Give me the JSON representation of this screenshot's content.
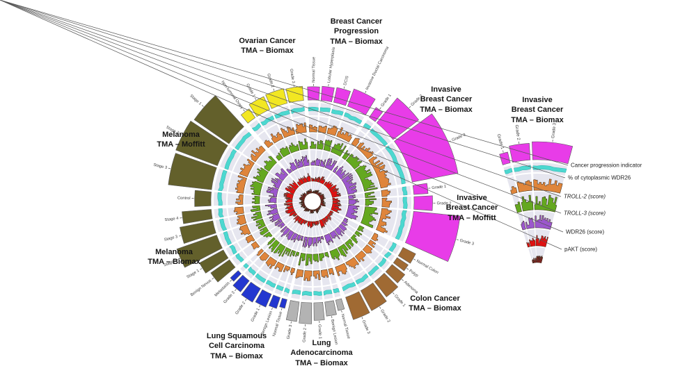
{
  "titles": {
    "breast_progression": "Breast Cancer\nProgression\nTMA – Biomax",
    "ovarian": "Ovarian Cancer\nTMA – Biomax",
    "invasive_breast_biomax": "Invasive\nBreast Cancer\nTMA – Biomax",
    "invasive_breast_moffitt": "Invasive\nBreast Cancer\nTMA – Moffitt",
    "colon": "Colon Cancer\nTMA – Biomax",
    "lung_adeno": "Lung\nAdenocarcinoma\nTMA – Biomax",
    "lung_squamous": "Lung Squamous\nCell Carcinoma\nTMA – Biomax",
    "melanoma_biomax": "Melanoma\nTMA – Biomax",
    "melanoma_moffitt": "Melanoma\nTMA – Moffitt",
    "legend": "Invasive\nBreast Cancer\nTMA – Biomax"
  },
  "legend": {
    "ring_labels": [
      {
        "text": "Cancer progression indicator",
        "italic": false
      },
      {
        "text": "% of cytoplasmic WDR26",
        "italic": false
      },
      {
        "text": "TROLL-2 (score)",
        "italic": true
      },
      {
        "text": "TROLL-3 (score)",
        "italic": true
      },
      {
        "text": "WDR26 (score)",
        "italic": false
      },
      {
        "text": "pAKT (score)",
        "italic": false
      }
    ]
  },
  "chart_data": {
    "type": "circos",
    "colors": {
      "band": "#e6e6ef",
      "breast": "#e83ce8",
      "ovarian": "#f2e722",
      "melanoma": "#63602b",
      "lung_squamous": "#2337d0",
      "lung_adeno": "#b3b3b3",
      "colon": "#a06a33",
      "bar_outline": "#2d2213",
      "cat_outline": "#5a5a5a"
    },
    "indicator": {
      "label": "Cancer progression indicator",
      "color": "#4cd8d0"
    },
    "rings": [
      {
        "id": "wdr26_cyto",
        "label": "% of cytoplasmic WDR26",
        "color": "#df853b"
      },
      {
        "id": "troll2",
        "label": "TROLL-2 (score)",
        "color": "#64a81f"
      },
      {
        "id": "troll3",
        "label": "TROLL-3 (score)",
        "color": "#9c57cd"
      },
      {
        "id": "wdr26",
        "label": "WDR26 (score)",
        "color": "#de1212"
      },
      {
        "id": "pakt",
        "label": "pAKT (score)",
        "color": "#7a2420"
      }
    ],
    "groups": [
      {
        "id": "breast_progression",
        "title": "Breast Cancer Progression TMA – Biomax",
        "color": "#e83ce8",
        "start": -2.5,
        "end": 31.5,
        "sectors": [
          {
            "label": "Normal Tissue",
            "w": 7,
            "ch": 0.18,
            "levels": [
              0.5,
              0.45,
              0.3,
              0.25,
              0.15
            ]
          },
          {
            "label": "Lobular Hyperplasia",
            "w": 7,
            "ch": 0.2,
            "levels": [
              0.55,
              0.55,
              0.45,
              0.3,
              0.2
            ]
          },
          {
            "label": "DCIS",
            "w": 8,
            "ch": 0.22,
            "levels": [
              0.6,
              0.7,
              0.55,
              0.4,
              0.3
            ]
          },
          {
            "label": "Invasive Ductal Carcinoma",
            "w": 13,
            "ch": 0.3,
            "levels": [
              0.65,
              0.8,
              0.7,
              0.5,
              0.4
            ]
          }
        ]
      },
      {
        "id": "invasive_breast_biomax",
        "title": "Invasive Breast Cancer TMA – Biomax",
        "color": "#e83ce8",
        "start": 34,
        "end": 79,
        "sectors": [
          {
            "label": "Grade 1",
            "w": 4,
            "ch": 0.15,
            "levels": [
              0.55,
              0.6,
              0.5,
              0.35,
              0.25
            ]
          },
          {
            "label": "Grade 2",
            "w": 13,
            "ch": 0.62,
            "levels": [
              0.65,
              0.8,
              0.65,
              0.5,
              0.35
            ]
          },
          {
            "label": "Grade 3",
            "w": 25,
            "ch": 0.95,
            "levels": [
              0.7,
              0.85,
              0.75,
              0.6,
              0.45
            ]
          }
        ]
      },
      {
        "id": "invasive_breast_moffitt",
        "title": "Invasive Breast Cancer TMA – Moffitt",
        "color": "#e83ce8",
        "start": 81,
        "end": 114,
        "sectors": [
          {
            "label": "Grade 1",
            "w": 5,
            "ch": 0.2,
            "levels": [
              0.55,
              0.6,
              0.5,
              0.4,
              0.3
            ]
          },
          {
            "label": "Grade 2",
            "w": 7,
            "ch": 0.3,
            "levels": [
              0.6,
              0.75,
              0.65,
              0.5,
              0.35
            ]
          },
          {
            "label": "Grade 3",
            "w": 18,
            "ch": 0.95,
            "levels": [
              0.7,
              0.85,
              0.75,
              0.65,
              0.5
            ]
          }
        ]
      },
      {
        "id": "colon",
        "title": "Colon Cancer TMA – Biomax",
        "color": "#a06a33",
        "start": 117,
        "end": 161,
        "sectors": [
          {
            "label": "Normal Colon",
            "w": 6,
            "ch": 0.2,
            "levels": [
              0.45,
              0.4,
              0.3,
              0.25,
              0.15
            ]
          },
          {
            "label": "Polyp",
            "w": 4,
            "ch": 0.18,
            "levels": [
              0.5,
              0.45,
              0.4,
              0.3,
              0.2
            ]
          },
          {
            "label": "Adenoma",
            "w": 6,
            "ch": 0.25,
            "levels": [
              0.55,
              0.6,
              0.5,
              0.35,
              0.25
            ]
          },
          {
            "label": "Grade 1",
            "w": 8,
            "ch": 0.32,
            "levels": [
              0.6,
              0.7,
              0.6,
              0.45,
              0.3
            ]
          },
          {
            "label": "Grade 2",
            "w": 9,
            "ch": 0.4,
            "levels": [
              0.65,
              0.75,
              0.65,
              0.5,
              0.35
            ]
          },
          {
            "label": "Grade 3",
            "w": 9,
            "ch": 0.42,
            "levels": [
              0.65,
              0.8,
              0.7,
              0.55,
              0.4
            ]
          }
        ]
      },
      {
        "id": "lung_adeno",
        "title": "Lung Adenocarcinoma TMA – Biomax",
        "color": "#b3b3b3",
        "start": 163.5,
        "end": 192.5,
        "sectors": [
          {
            "label": "Normal Tissue",
            "w": 4,
            "ch": 0.12,
            "levels": [
              0.45,
              0.35,
              0.3,
              0.25,
              0.15
            ]
          },
          {
            "label": "Benign Lesion",
            "w": 6,
            "ch": 0.2,
            "levels": [
              0.5,
              0.45,
              0.4,
              0.3,
              0.2
            ]
          },
          {
            "label": "Grade 1",
            "w": 6,
            "ch": 0.28,
            "levels": [
              0.6,
              0.65,
              0.55,
              0.4,
              0.3
            ]
          },
          {
            "label": "Grade 2",
            "w": 7,
            "ch": 0.36,
            "levels": [
              0.65,
              0.75,
              0.65,
              0.5,
              0.35
            ]
          },
          {
            "label": "Grade 3",
            "w": 6,
            "ch": 0.33,
            "levels": [
              0.65,
              0.8,
              0.7,
              0.55,
              0.4
            ]
          }
        ]
      },
      {
        "id": "lung_squamous",
        "title": "Lung Squamous Cell Carcinoma TMA – Biomax",
        "color": "#2337d0",
        "start": 194.5,
        "end": 227,
        "sectors": [
          {
            "label": "Normal Tissue",
            "w": 3.5,
            "ch": 0.08,
            "levels": [
              0.45,
              0.35,
              0.3,
              0.25,
              0.15
            ]
          },
          {
            "label": "Benign Lesion",
            "w": 5,
            "ch": 0.14,
            "levels": [
              0.5,
              0.45,
              0.4,
              0.3,
              0.2
            ]
          },
          {
            "label": "Grade 1",
            "w": 7,
            "ch": 0.2,
            "levels": [
              0.6,
              0.65,
              0.55,
              0.45,
              0.3
            ]
          },
          {
            "label": "Grade 2",
            "w": 8,
            "ch": 0.24,
            "levels": [
              0.65,
              0.75,
              0.65,
              0.5,
              0.35
            ]
          },
          {
            "label": "Grade 3",
            "w": 6,
            "ch": 0.2,
            "levels": [
              0.65,
              0.8,
              0.7,
              0.55,
              0.4
            ]
          },
          {
            "label": "Metastasis",
            "w": 3,
            "ch": 0.12,
            "levels": [
              0.6,
              0.7,
              0.6,
              0.5,
              0.35
            ]
          }
        ]
      },
      {
        "id": "melanoma_biomax",
        "title": "Melanoma TMA – Biomax",
        "color": "#63602b",
        "start": 229.5,
        "end": 265.5,
        "sectors": [
          {
            "label": "Benign Nevus",
            "w": 6,
            "ch": 0.4,
            "levels": [
              0.5,
              0.5,
              0.45,
              0.4,
              0.25
            ]
          },
          {
            "label": "Stage 1",
            "w": 6,
            "ch": 0.5,
            "levels": [
              0.55,
              0.6,
              0.55,
              0.5,
              0.3
            ]
          },
          {
            "label": "Stage 2",
            "w": 9,
            "ch": 0.85,
            "levels": [
              0.6,
              0.7,
              0.65,
              0.6,
              0.4
            ]
          },
          {
            "label": "Stage 3",
            "w": 8,
            "ch": 0.65,
            "levels": [
              0.6,
              0.75,
              0.7,
              0.65,
              0.45
            ]
          },
          {
            "label": "Stage 4",
            "w": 6,
            "ch": 0.55,
            "levels": [
              0.6,
              0.75,
              0.7,
              0.7,
              0.5
            ]
          }
        ]
      },
      {
        "id": "melanoma_moffitt",
        "title": "Melanoma TMA – Moffitt",
        "color": "#63602b",
        "start": 267.5,
        "end": 317.5,
        "sectors": [
          {
            "label": "Control",
            "w": 8,
            "ch": 0.25,
            "levels": [
              0.45,
              0.5,
              0.55,
              0.5,
              0.3
            ]
          },
          {
            "label": "Stage 3",
            "w": 13,
            "ch": 0.88,
            "levels": [
              0.6,
              0.7,
              0.7,
              0.65,
              0.45
            ]
          },
          {
            "label": "Stage 2",
            "w": 13,
            "ch": 0.9,
            "levels": [
              0.6,
              0.7,
              0.7,
              0.65,
              0.45
            ]
          },
          {
            "label": "Stage 1",
            "w": 13,
            "ch": 0.85,
            "levels": [
              0.6,
              0.65,
              0.65,
              0.6,
              0.4
            ]
          }
        ]
      },
      {
        "id": "ovarian",
        "title": "Ovarian Cancer TMA – Biomax",
        "color": "#f2e722",
        "start": 320.5,
        "end": 355,
        "sectors": [
          {
            "label": "Non-tumoral Ovary",
            "w": 5,
            "ch": 0.12,
            "levels": [
              0.5,
              0.4,
              0.35,
              0.3,
              0.2
            ]
          },
          {
            "label": "Grade 1",
            "w": 8,
            "ch": 0.2,
            "levels": [
              0.6,
              0.65,
              0.55,
              0.45,
              0.3
            ]
          },
          {
            "label": "Grade 2",
            "w": 9,
            "ch": 0.22,
            "levels": [
              0.65,
              0.7,
              0.6,
              0.5,
              0.35
            ]
          },
          {
            "label": "Grade 3",
            "w": 8,
            "ch": 0.2,
            "levels": [
              0.65,
              0.75,
              0.65,
              0.55,
              0.4
            ]
          }
        ]
      }
    ],
    "legend_wedge": {
      "id": "legend",
      "title": "Invasive Breast Cancer TMA – Biomax",
      "color": "#e83ce8",
      "start": -17,
      "end": 15,
      "sectors": [
        {
          "label": "Grade 1",
          "w": 3.5,
          "ch": 0.5,
          "levels": [
            0.55,
            0.6,
            0.5,
            0.35,
            0.25
          ]
        },
        {
          "label": "Grade 2",
          "w": 8,
          "ch": 0.9,
          "levels": [
            0.65,
            0.8,
            0.65,
            0.5,
            0.35
          ]
        },
        {
          "label": "Grade 3",
          "w": 16,
          "ch": 1.0,
          "levels": [
            0.7,
            0.85,
            0.75,
            0.6,
            0.45
          ]
        }
      ]
    }
  }
}
